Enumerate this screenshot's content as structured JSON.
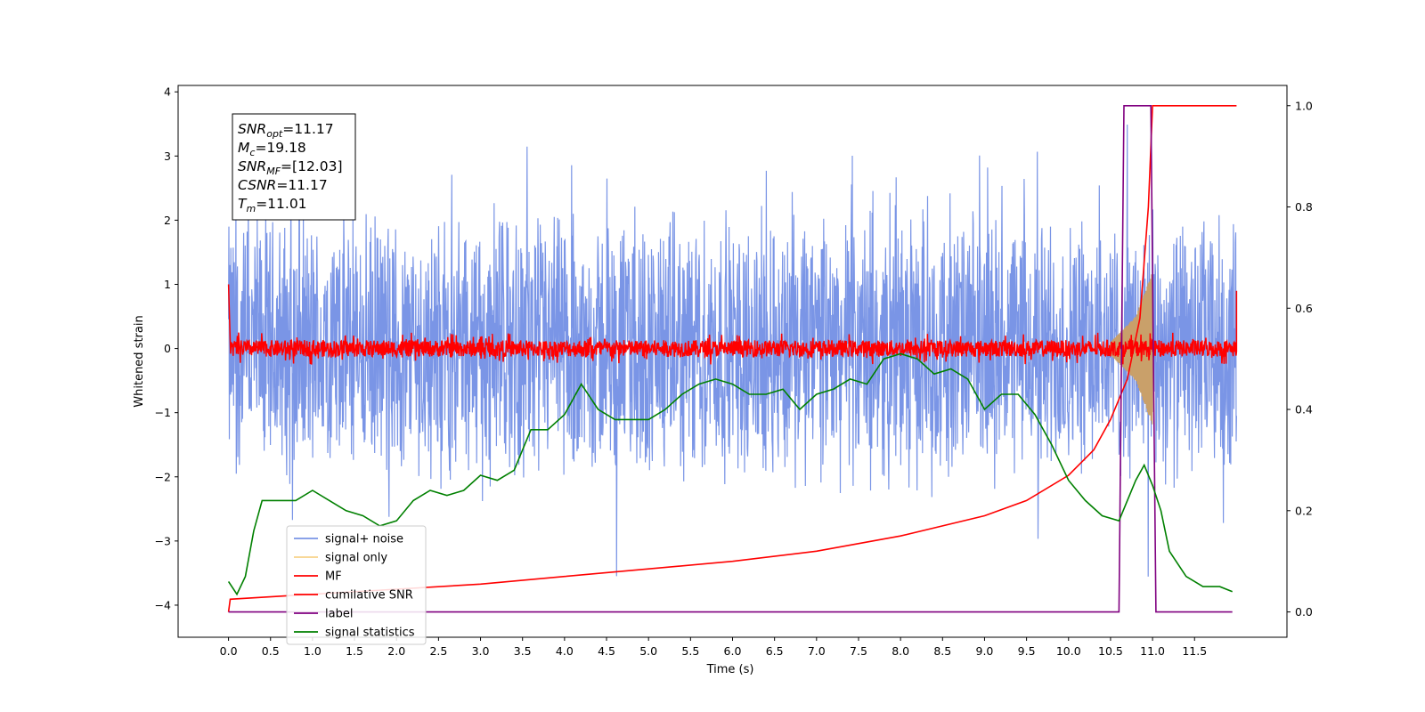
{
  "chart_data": {
    "type": "line",
    "xlabel": "Time (s)",
    "ylabel": "Whitened strain",
    "xlim": [
      -0.6,
      12.6
    ],
    "ylim": [
      -4.5,
      4.1
    ],
    "y2lim": [
      -0.05,
      1.04
    ],
    "xticks": [
      "0.0",
      "0.5",
      "1.0",
      "1.5",
      "2.0",
      "2.5",
      "3.0",
      "3.5",
      "4.0",
      "4.5",
      "5.0",
      "5.5",
      "6.0",
      "6.5",
      "7.0",
      "7.5",
      "8.0",
      "8.5",
      "9.0",
      "9.5",
      "10.0",
      "10.5",
      "11.0",
      "11.5"
    ],
    "yticks": [
      "4",
      "3",
      "2",
      "1",
      "0",
      "−1",
      "−2",
      "−3",
      "−4"
    ],
    "y2ticks": [
      "1.0",
      "0.8",
      "0.6",
      "0.4",
      "0.2",
      "0.0"
    ],
    "grid": false,
    "legend_placement": "lower-left",
    "annotation": [
      {
        "base": "SNR",
        "sub": "opt",
        "value": "=11.17"
      },
      {
        "base": "M",
        "sub": "c",
        "value": "=19.18"
      },
      {
        "base": "SNR",
        "sub": "MF",
        "value": "=[12.03]"
      },
      {
        "base": "CSNR",
        "sub": "",
        "value": "=11.17"
      },
      {
        "base": "T",
        "sub": "m",
        "value": "=11.01"
      }
    ],
    "series": [
      {
        "name": "signal+ noise",
        "color": "#7a95e6",
        "axis": "left",
        "noise_range": [
          -2.0,
          2.6
        ],
        "t_range": [
          0.0,
          12.0
        ]
      },
      {
        "name": "signal only",
        "color": "#f7d38a",
        "axis": "left",
        "chirp_envelope": {
          "t": [
            10.5,
            10.8,
            11.0
          ],
          "amplitude": [
            0.1,
            0.5,
            1.2
          ]
        }
      },
      {
        "name": "MF",
        "color": "#ff0000",
        "axis": "left",
        "noise_range": [
          -0.15,
          0.15
        ],
        "start_value": 1.0,
        "end_value": 0.9
      },
      {
        "name": "cumilative SNR",
        "color": "#ff0000",
        "axis": "right",
        "x": [
          0.0,
          0.02,
          1,
          2,
          3,
          4,
          5,
          6,
          7,
          8,
          9,
          9.5,
          10,
          10.3,
          10.5,
          10.7,
          10.85,
          10.95,
          11.0,
          11.02,
          12.0
        ],
        "y": [
          0.0,
          0.025,
          0.035,
          0.045,
          0.055,
          0.07,
          0.085,
          0.1,
          0.12,
          0.15,
          0.19,
          0.22,
          0.27,
          0.32,
          0.38,
          0.46,
          0.58,
          0.8,
          1.0,
          1.0,
          1.0
        ]
      },
      {
        "name": "label",
        "color": "#800080",
        "axis": "right",
        "x": [
          0.0,
          10.6,
          10.66,
          10.98,
          11.04,
          11.95
        ],
        "y": [
          0.0,
          0.0,
          1.0,
          1.0,
          0.0,
          0.0
        ]
      },
      {
        "name": "signal statistics",
        "color": "#008000",
        "axis": "right",
        "x": [
          0.0,
          0.1,
          0.2,
          0.3,
          0.4,
          0.6,
          0.8,
          1.0,
          1.2,
          1.4,
          1.6,
          1.8,
          2.0,
          2.2,
          2.4,
          2.6,
          2.8,
          3.0,
          3.2,
          3.4,
          3.6,
          3.8,
          4.0,
          4.2,
          4.4,
          4.6,
          4.8,
          5.0,
          5.2,
          5.4,
          5.6,
          5.8,
          6.0,
          6.2,
          6.4,
          6.6,
          6.8,
          7.0,
          7.2,
          7.4,
          7.6,
          7.8,
          8.0,
          8.2,
          8.4,
          8.6,
          8.8,
          9.0,
          9.2,
          9.4,
          9.6,
          9.8,
          10.0,
          10.2,
          10.4,
          10.6,
          10.8,
          10.9,
          11.0,
          11.1,
          11.2,
          11.4,
          11.6,
          11.8,
          11.95
        ],
        "y": [
          0.06,
          0.035,
          0.07,
          0.16,
          0.22,
          0.22,
          0.22,
          0.24,
          0.22,
          0.2,
          0.19,
          0.17,
          0.18,
          0.22,
          0.24,
          0.23,
          0.24,
          0.27,
          0.26,
          0.28,
          0.36,
          0.36,
          0.39,
          0.45,
          0.4,
          0.38,
          0.38,
          0.38,
          0.4,
          0.43,
          0.45,
          0.46,
          0.45,
          0.43,
          0.43,
          0.44,
          0.4,
          0.43,
          0.44,
          0.46,
          0.45,
          0.5,
          0.51,
          0.5,
          0.47,
          0.48,
          0.46,
          0.4,
          0.43,
          0.43,
          0.39,
          0.33,
          0.26,
          0.22,
          0.19,
          0.18,
          0.26,
          0.29,
          0.25,
          0.2,
          0.12,
          0.07,
          0.05,
          0.05,
          0.04
        ]
      }
    ]
  }
}
